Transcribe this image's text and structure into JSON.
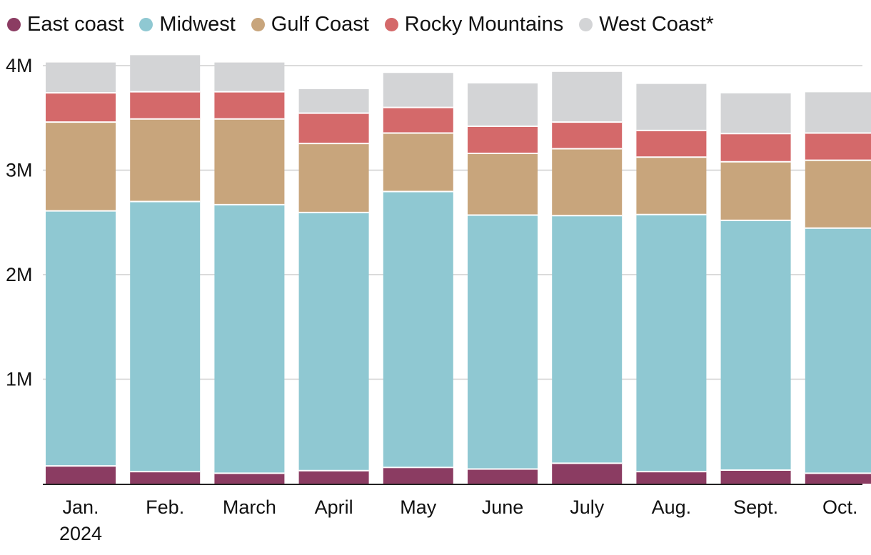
{
  "chart_data": {
    "type": "bar",
    "stacked": true,
    "title": "",
    "xlabel": "",
    "ylabel": "",
    "ylim": [
      0,
      4000000
    ],
    "yticks": [
      {
        "value": 1000000,
        "label": "1M"
      },
      {
        "value": 2000000,
        "label": "2M"
      },
      {
        "value": 3000000,
        "label": "3M"
      },
      {
        "value": 4000000,
        "label": "4M"
      }
    ],
    "categories": [
      {
        "line1": "Jan.",
        "line2": "2024"
      },
      {
        "line1": "Feb.",
        "line2": ""
      },
      {
        "line1": "March",
        "line2": ""
      },
      {
        "line1": "April",
        "line2": ""
      },
      {
        "line1": "May",
        "line2": ""
      },
      {
        "line1": "June",
        "line2": ""
      },
      {
        "line1": "July",
        "line2": ""
      },
      {
        "line1": "Aug.",
        "line2": ""
      },
      {
        "line1": "Sept.",
        "line2": ""
      },
      {
        "line1": "Oct.",
        "line2": ""
      }
    ],
    "grid": true,
    "legend_position": "top-left",
    "series": [
      {
        "name": "East coast",
        "color": "#8b3c62",
        "values": [
          170000,
          115000,
          100000,
          125000,
          155000,
          140000,
          195000,
          115000,
          130000,
          100000
        ]
      },
      {
        "name": "Midwest",
        "color": "#8fc8d2",
        "values": [
          2440000,
          2585000,
          2570000,
          2470000,
          2640000,
          2430000,
          2370000,
          2460000,
          2390000,
          2345000
        ]
      },
      {
        "name": "Gulf Coast",
        "color": "#c8a57c",
        "values": [
          850000,
          790000,
          820000,
          660000,
          560000,
          590000,
          640000,
          550000,
          560000,
          650000
        ]
      },
      {
        "name": "Rocky Mountains",
        "color": "#d4696a",
        "values": [
          280000,
          260000,
          260000,
          290000,
          245000,
          260000,
          255000,
          255000,
          270000,
          260000
        ]
      },
      {
        "name": "West Coast*",
        "color": "#d3d4d6",
        "values": [
          290000,
          350000,
          280000,
          230000,
          330000,
          410000,
          480000,
          445000,
          385000,
          390000
        ]
      }
    ]
  }
}
